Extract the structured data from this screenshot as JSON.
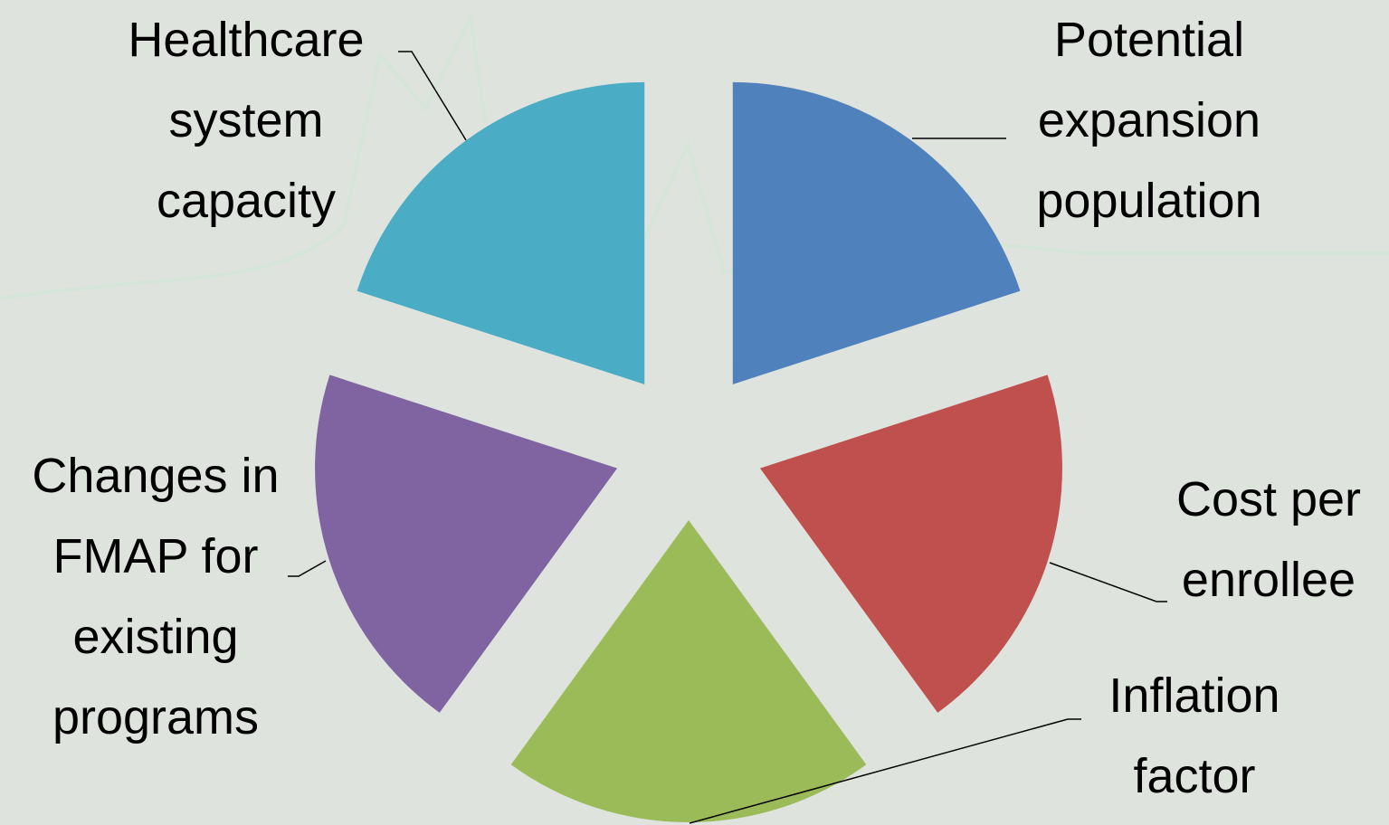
{
  "chart_data": {
    "type": "pie",
    "categories": [
      "Potential expansion population",
      "Cost per enrollee",
      "Inflation factor",
      "Changes in FMAP for existing programs",
      "Healthcare system capacity"
    ],
    "values": [
      20,
      20,
      20,
      20,
      20
    ],
    "colors": [
      "#4f81bd",
      "#c0504d",
      "#9bbb59",
      "#8064a2",
      "#4bacc6"
    ],
    "exploded": true
  }
}
